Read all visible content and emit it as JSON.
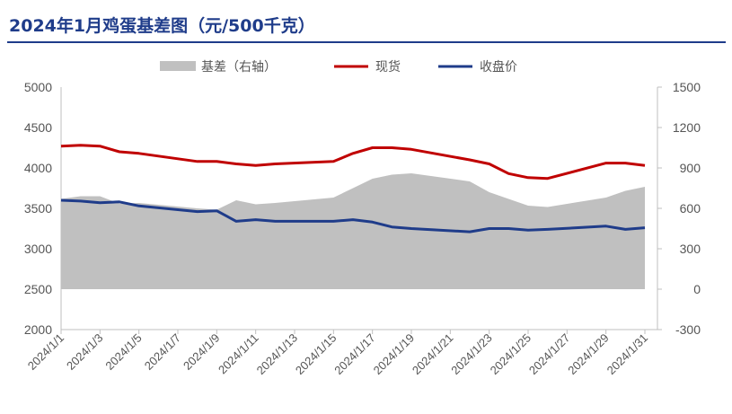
{
  "title": "2024年1月鸡蛋基差图（元/500千克）",
  "chart_data": {
    "type": "line",
    "title": "2024年1月鸡蛋基差图（元/500千克）",
    "x": [
      "2024/1/1",
      "2024/1/2",
      "2024/1/3",
      "2024/1/4",
      "2024/1/5",
      "2024/1/8",
      "2024/1/9",
      "2024/1/10",
      "2024/1/11",
      "2024/1/12",
      "2024/1/15",
      "2024/1/16",
      "2024/1/17",
      "2024/1/18",
      "2024/1/19",
      "2024/1/22",
      "2024/1/23",
      "2024/1/24",
      "2024/1/25",
      "2024/1/26",
      "2024/1/29",
      "2024/1/30",
      "2024/1/31"
    ],
    "series": [
      {
        "name": "基差（右轴）",
        "type": "area",
        "axis": "right",
        "color": "#c0c0c0",
        "values": [
          670,
          690,
          690,
          635,
          640,
          600,
          590,
          660,
          630,
          640,
          680,
          750,
          820,
          850,
          860,
          800,
          720,
          670,
          620,
          610,
          680,
          730,
          760
        ]
      },
      {
        "name": "现货",
        "type": "line",
        "axis": "left",
        "color": "#c00000",
        "values": [
          4270,
          4280,
          4270,
          4200,
          4180,
          4080,
          4080,
          4050,
          4030,
          4050,
          4080,
          4180,
          4250,
          4250,
          4230,
          4100,
          4050,
          3930,
          3880,
          3870,
          4060,
          4060,
          4030
        ]
      },
      {
        "name": "收盘价",
        "type": "line",
        "axis": "left",
        "color": "#1f3c8a",
        "values": [
          3600,
          3590,
          3570,
          3580,
          3530,
          3460,
          3470,
          3340,
          3360,
          3340,
          3340,
          3360,
          3330,
          3270,
          3250,
          3210,
          3250,
          3250,
          3230,
          3240,
          3280,
          3240,
          3260
        ]
      }
    ],
    "x_ticks": [
      "2024/1/1",
      "2024/1/3",
      "2024/1/5",
      "2024/1/7",
      "2024/1/9",
      "2024/1/11",
      "2024/1/13",
      "2024/1/15",
      "2024/1/17",
      "2024/1/19",
      "2024/1/21",
      "2024/1/23",
      "2024/1/25",
      "2024/1/27",
      "2024/1/29",
      "2024/1/31"
    ],
    "y_left": {
      "min": 2000,
      "max": 5000,
      "ticks": [
        2000,
        2500,
        3000,
        3500,
        4000,
        4500,
        5000
      ]
    },
    "y_right": {
      "min": -300,
      "max": 1500,
      "ticks": [
        -300,
        0,
        300,
        600,
        900,
        1200,
        1500
      ]
    },
    "legend": {
      "placement": "top-center",
      "items": [
        "基差（右轴）",
        "现货",
        "收盘价"
      ]
    },
    "grid": false
  }
}
